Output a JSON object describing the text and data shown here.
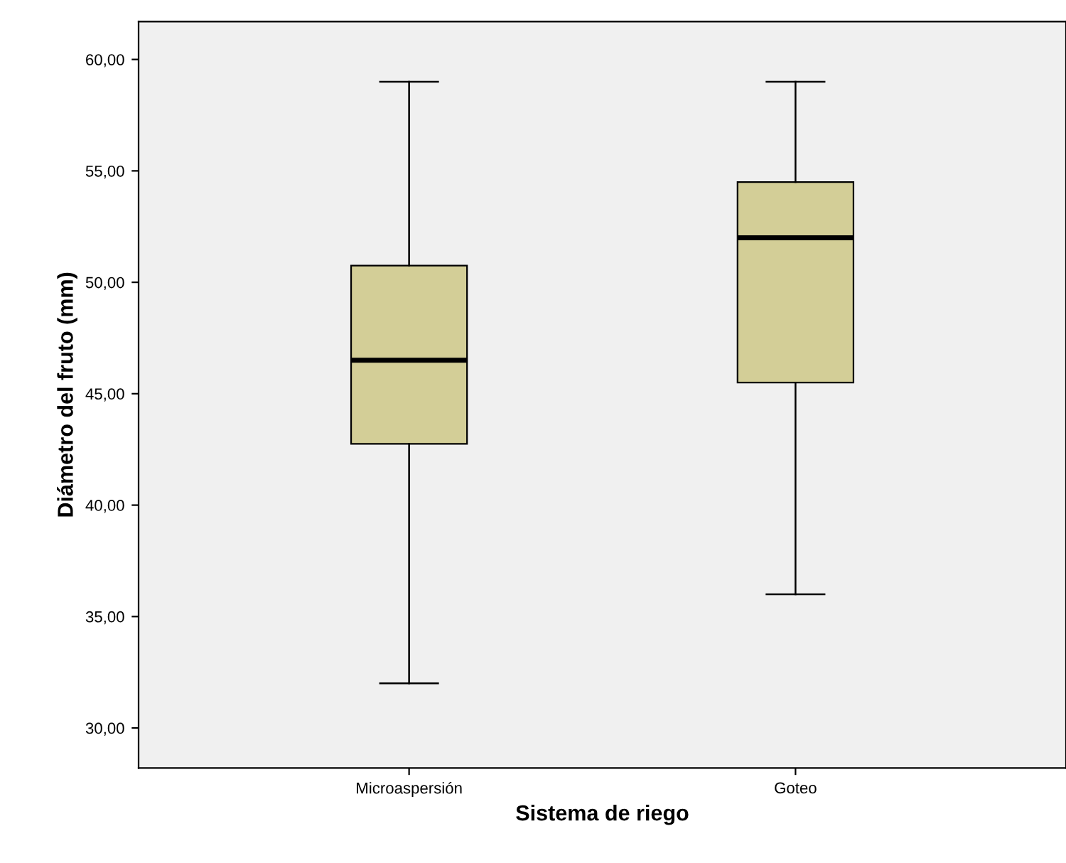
{
  "chart_data": {
    "type": "box",
    "xlabel": "Sistema de riego",
    "ylabel": "Diámetro del fruto (mm)",
    "categories": [
      "Microaspersión",
      "Goteo"
    ],
    "boxes": [
      {
        "low": 32,
        "q1": 42.75,
        "median": 46.5,
        "q3": 50.75,
        "high": 59
      },
      {
        "low": 36,
        "q1": 45.5,
        "median": 52,
        "q3": 54.5,
        "high": 59
      }
    ],
    "color": "#d3ce97",
    "ylim": [
      28.2,
      61.7
    ],
    "yticks": [
      {
        "value": 30,
        "label": "30,00"
      },
      {
        "value": 35,
        "label": "35,00"
      },
      {
        "value": 40,
        "label": "40,00"
      },
      {
        "value": 45,
        "label": "45,00"
      },
      {
        "value": 50,
        "label": "50,00"
      },
      {
        "value": 55,
        "label": "55,00"
      },
      {
        "value": 60,
        "label": "60,00"
      }
    ],
    "grid": false
  }
}
